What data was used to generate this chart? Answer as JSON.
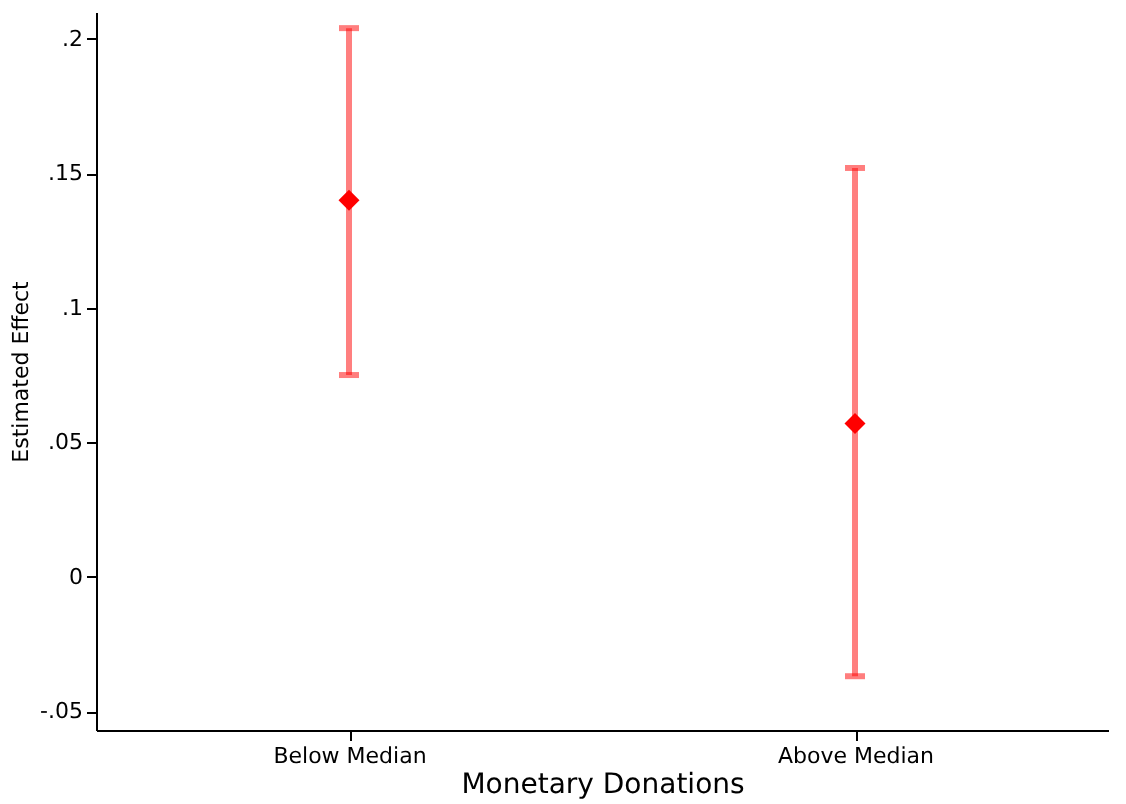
{
  "chart_data": {
    "type": "scatter",
    "xlabel": "Monetary Donations",
    "ylabel": "Estimated Effect",
    "categories": [
      "Below Median",
      "Above Median"
    ],
    "series": [
      {
        "color": "#ff0000",
        "values": [
          0.14,
          0.057
        ],
        "errors": [
          [
            0.075,
            0.204
          ],
          [
            -0.037,
            0.152
          ]
        ]
      }
    ],
    "ylim": [
      -0.057,
      0.21
    ],
    "yticks": [
      {
        "value": -0.05,
        "label": "-.05"
      },
      0,
      {
        "value": 0.05,
        "label": ".05"
      },
      {
        "value": 0.1,
        "label": ".1"
      },
      {
        "value": 0.15,
        "label": ".15"
      },
      {
        "value": 0.2,
        "label": ".2"
      }
    ],
    "marker": "diamond",
    "grid": false,
    "legend": false
  }
}
